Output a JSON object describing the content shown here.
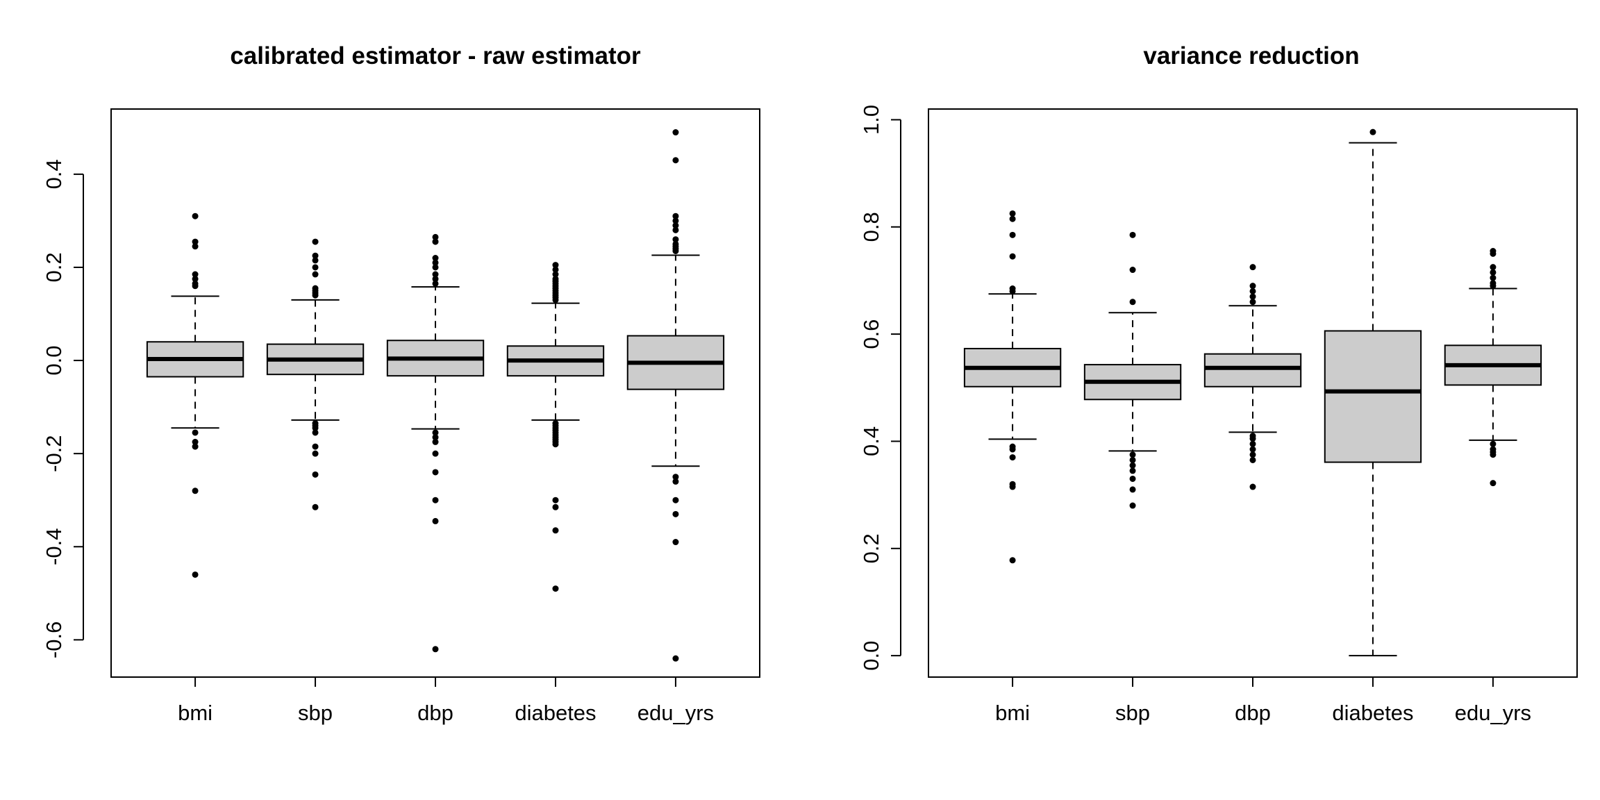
{
  "chart_data": [
    {
      "type": "box",
      "title": "calibrated estimator - raw estimator",
      "xlabel": "",
      "ylabel": "",
      "ylim": [
        -0.68,
        0.54
      ],
      "yticks": [
        -0.6,
        -0.4,
        -0.2,
        0.0,
        0.2,
        0.4
      ],
      "ytick_labels": [
        "-0.6",
        "-0.4",
        "-0.2",
        "0.0",
        "0.2",
        "0.4"
      ],
      "categories": [
        "bmi",
        "sbp",
        "dbp",
        "diabetes",
        "edu_yrs"
      ],
      "boxes": [
        {
          "label": "bmi",
          "whisker_low": -0.145,
          "q1": -0.035,
          "median": 0.003,
          "q3": 0.04,
          "whisker_high": 0.138,
          "outliers": [
            0.31,
            0.255,
            0.245,
            0.185,
            0.175,
            0.165,
            0.16,
            -0.155,
            -0.175,
            -0.185,
            -0.28,
            -0.46
          ]
        },
        {
          "label": "sbp",
          "whisker_low": -0.128,
          "q1": -0.03,
          "median": 0.002,
          "q3": 0.035,
          "whisker_high": 0.13,
          "outliers": [
            0.255,
            0.225,
            0.215,
            0.2,
            0.185,
            0.155,
            0.15,
            0.145,
            0.14,
            -0.135,
            -0.14,
            -0.145,
            -0.155,
            -0.185,
            -0.2,
            -0.245,
            -0.315
          ]
        },
        {
          "label": "dbp",
          "whisker_low": -0.147,
          "q1": -0.033,
          "median": 0.004,
          "q3": 0.043,
          "whisker_high": 0.158,
          "outliers": [
            0.265,
            0.255,
            0.22,
            0.21,
            0.2,
            0.185,
            0.175,
            0.165,
            -0.155,
            -0.165,
            -0.175,
            -0.2,
            -0.24,
            -0.3,
            -0.345,
            -0.62
          ]
        },
        {
          "label": "diabetes",
          "whisker_low": -0.128,
          "q1": -0.033,
          "median": 0.0,
          "q3": 0.031,
          "whisker_high": 0.123,
          "outliers": [
            0.205,
            0.195,
            0.185,
            0.175,
            0.17,
            0.165,
            0.16,
            0.155,
            0.15,
            0.145,
            0.14,
            0.135,
            0.13,
            -0.135,
            -0.14,
            -0.145,
            -0.15,
            -0.155,
            -0.16,
            -0.165,
            -0.17,
            -0.175,
            -0.18,
            -0.3,
            -0.315,
            -0.365,
            -0.49
          ]
        },
        {
          "label": "edu_yrs",
          "whisker_low": -0.227,
          "q1": -0.062,
          "median": -0.005,
          "q3": 0.053,
          "whisker_high": 0.226,
          "outliers": [
            0.49,
            0.43,
            0.31,
            0.3,
            0.29,
            0.28,
            0.26,
            0.25,
            0.245,
            0.24,
            0.235,
            -0.25,
            -0.26,
            -0.3,
            -0.33,
            -0.39,
            -0.64
          ]
        }
      ]
    },
    {
      "type": "box",
      "title": "variance reduction",
      "xlabel": "",
      "ylabel": "",
      "ylim": [
        -0.04,
        1.02
      ],
      "yticks": [
        0.0,
        0.2,
        0.4,
        0.6,
        0.8,
        1.0
      ],
      "ytick_labels": [
        "0.0",
        "0.2",
        "0.4",
        "0.6",
        "0.8",
        "1.0"
      ],
      "categories": [
        "bmi",
        "sbp",
        "dbp",
        "diabetes",
        "edu_yrs"
      ],
      "boxes": [
        {
          "label": "bmi",
          "whisker_low": 0.404,
          "q1": 0.502,
          "median": 0.537,
          "q3": 0.573,
          "whisker_high": 0.675,
          "outliers": [
            0.825,
            0.815,
            0.785,
            0.745,
            0.685,
            0.68,
            0.39,
            0.385,
            0.37,
            0.32,
            0.315,
            0.178
          ]
        },
        {
          "label": "sbp",
          "whisker_low": 0.382,
          "q1": 0.478,
          "median": 0.511,
          "q3": 0.543,
          "whisker_high": 0.64,
          "outliers": [
            0.785,
            0.72,
            0.66,
            0.375,
            0.365,
            0.355,
            0.345,
            0.33,
            0.31,
            0.28
          ]
        },
        {
          "label": "dbp",
          "whisker_low": 0.417,
          "q1": 0.502,
          "median": 0.537,
          "q3": 0.563,
          "whisker_high": 0.653,
          "outliers": [
            0.725,
            0.69,
            0.68,
            0.67,
            0.66,
            0.41,
            0.405,
            0.395,
            0.385,
            0.375,
            0.365,
            0.315
          ]
        },
        {
          "label": "diabetes",
          "whisker_low": 0.0,
          "q1": 0.361,
          "median": 0.493,
          "q3": 0.606,
          "whisker_high": 0.957,
          "outliers": [
            0.977
          ]
        },
        {
          "label": "edu_yrs",
          "whisker_low": 0.402,
          "q1": 0.505,
          "median": 0.542,
          "q3": 0.579,
          "whisker_high": 0.685,
          "outliers": [
            0.755,
            0.75,
            0.725,
            0.715,
            0.705,
            0.695,
            0.69,
            0.395,
            0.385,
            0.38,
            0.375,
            0.322
          ]
        }
      ]
    }
  ]
}
